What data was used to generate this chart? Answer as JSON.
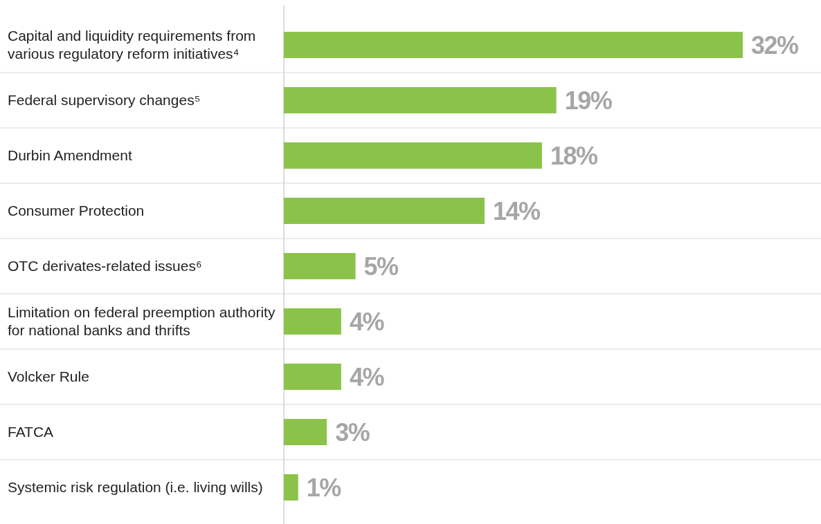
{
  "chart_data": {
    "type": "bar",
    "orientation": "horizontal",
    "categories": [
      "Capital and liquidity requirements from various regulatory reform initiatives⁴",
      "Federal supervisory changes⁵",
      "Durbin Amendment",
      "Consumer Protection",
      "OTC derivates-related issues⁶",
      "Limitation on federal preemption authority for national banks and thrifts",
      "Volcker Rule",
      "FATCA",
      "Systemic risk regulation (i.e. living wills)"
    ],
    "values": [
      32,
      19,
      18,
      14,
      5,
      4,
      4,
      3,
      1
    ],
    "value_labels": [
      "32%",
      "19%",
      "18%",
      "14%",
      "5%",
      "4%",
      "4%",
      "3%",
      "1%"
    ],
    "color": "#8bc34a"
  }
}
